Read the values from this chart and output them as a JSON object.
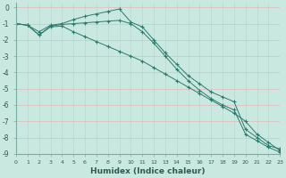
{
  "xlabel": "Humidex (Indice chaleur)",
  "ylabel": "",
  "xlim": [
    0,
    23
  ],
  "ylim": [
    -9.0,
    0.3
  ],
  "yticks": [
    0,
    -1,
    -2,
    -3,
    -4,
    -5,
    -6,
    -7,
    -8,
    -9
  ],
  "xticks": [
    0,
    1,
    2,
    3,
    4,
    5,
    6,
    7,
    8,
    9,
    10,
    11,
    12,
    13,
    14,
    15,
    16,
    17,
    18,
    19,
    20,
    21,
    22,
    23
  ],
  "line_color": "#2d7b6e",
  "bg_color": "#c8e8e0",
  "grid_color_h": "#e8b8b8",
  "grid_color_v": "#b8d8d0",
  "line1_x": [
    0,
    1,
    2,
    3,
    4,
    5,
    6,
    7,
    8,
    9,
    10,
    11,
    12,
    13,
    14,
    15,
    16,
    17,
    18,
    19,
    20,
    21,
    22,
    23
  ],
  "line1_y": [
    -1.0,
    -1.1,
    -1.5,
    -1.1,
    -1.0,
    -0.75,
    -0.55,
    -0.4,
    -0.25,
    -0.1,
    -0.9,
    -1.2,
    -2.0,
    -2.8,
    -3.5,
    -4.2,
    -4.7,
    -5.2,
    -5.5,
    -5.8,
    -7.5,
    -8.0,
    -8.5,
    -8.7
  ],
  "line2_x": [
    0,
    1,
    2,
    3,
    4,
    5,
    6,
    7,
    8,
    9,
    10,
    11,
    12,
    13,
    14,
    15,
    16,
    17,
    18,
    19,
    20,
    21,
    22,
    23
  ],
  "line2_y": [
    -1.0,
    -1.1,
    -1.7,
    -1.15,
    -1.05,
    -1.0,
    -0.95,
    -0.9,
    -0.85,
    -0.8,
    -1.0,
    -1.5,
    -2.2,
    -3.0,
    -3.8,
    -4.5,
    -5.1,
    -5.6,
    -6.0,
    -6.3,
    -7.8,
    -8.2,
    -8.6,
    -8.9
  ],
  "line3_x": [
    0,
    1,
    2,
    3,
    4,
    5,
    6,
    7,
    8,
    9,
    10,
    11,
    12,
    13,
    14,
    15,
    16,
    17,
    18,
    19,
    20,
    21,
    22,
    23
  ],
  "line3_y": [
    -1.0,
    -1.1,
    -1.7,
    -1.2,
    -1.15,
    -1.5,
    -1.8,
    -2.1,
    -2.4,
    -2.7,
    -3.0,
    -3.3,
    -3.7,
    -4.1,
    -4.5,
    -4.9,
    -5.3,
    -5.7,
    -6.1,
    -6.5,
    -7.0,
    -7.8,
    -8.3,
    -8.8
  ]
}
